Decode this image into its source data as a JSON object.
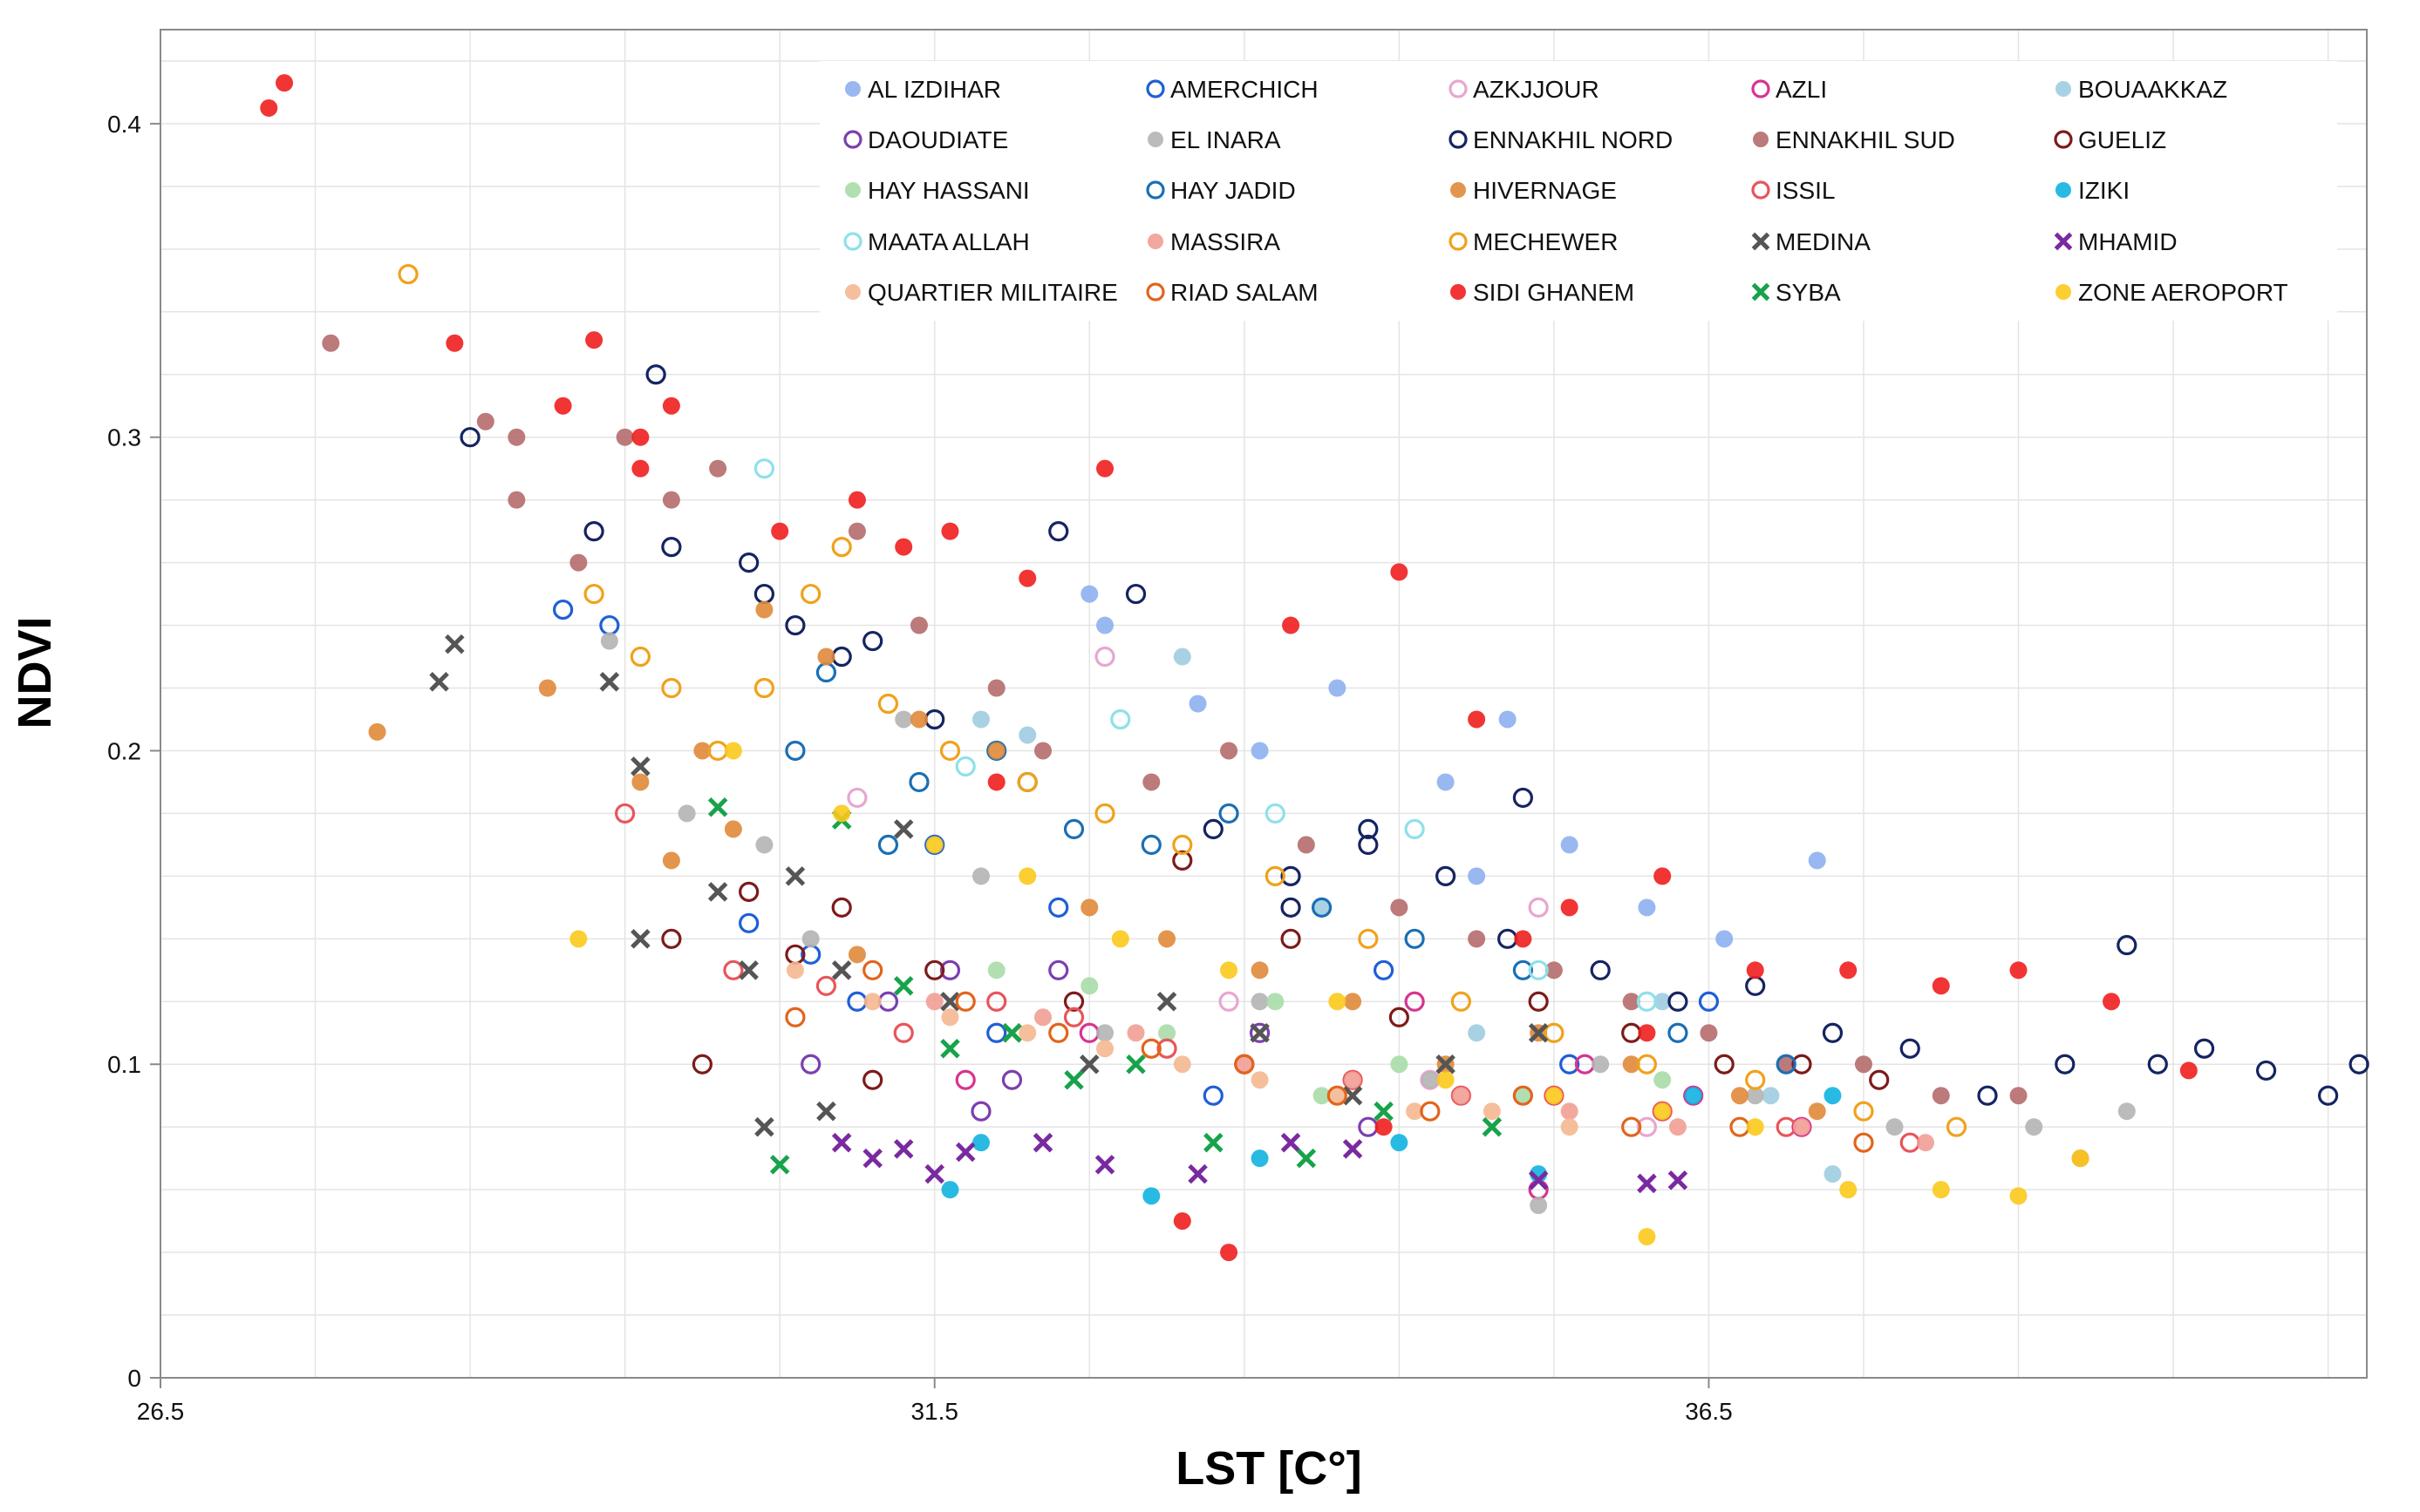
{
  "chart_data": {
    "type": "scatter",
    "title": "",
    "xlabel": "LST [C°]",
    "ylabel": "NDVI",
    "xlim": [
      26.5,
      40.75
    ],
    "ylim": [
      0,
      0.43
    ],
    "x_ticks": [
      "26.5",
      "31.5",
      "36.5"
    ],
    "y_ticks": [
      "0",
      "0.1",
      "0.2",
      "0.3",
      "0.4"
    ],
    "grid": true,
    "legend_position": "top-right",
    "series": [
      {
        "name": "AL IZDIHAR",
        "color": "#8eb0ef",
        "marker": "filled-circle",
        "x": [
          32.5,
          32.6,
          33.2,
          33.6,
          34.1,
          34.8,
          35.2,
          35.6,
          36.1,
          36.6,
          37.2,
          35.0
        ],
        "y": [
          0.25,
          0.24,
          0.215,
          0.2,
          0.22,
          0.19,
          0.21,
          0.17,
          0.15,
          0.14,
          0.165,
          0.16
        ]
      },
      {
        "name": "AMERCHICH",
        "color": "#1f5fd6",
        "marker": "open-circle",
        "x": [
          29.1,
          29.4,
          30.3,
          31.0,
          31.5,
          32.3,
          33.3,
          34.4,
          35.6,
          36.5,
          31.9,
          30.7
        ],
        "y": [
          0.245,
          0.24,
          0.145,
          0.12,
          0.17,
          0.15,
          0.09,
          0.13,
          0.1,
          0.12,
          0.11,
          0.135
        ]
      },
      {
        "name": "AZKJJOUR",
        "color": "#e8a6d0",
        "marker": "open-circle",
        "x": [
          32.6,
          31.0,
          33.4,
          34.7,
          35.4,
          36.1,
          31.8
        ],
        "y": [
          0.23,
          0.185,
          0.12,
          0.095,
          0.15,
          0.08,
          0.085
        ]
      },
      {
        "name": "AZLI",
        "color": "#d6358f",
        "marker": "open-circle",
        "x": [
          31.7,
          32.5,
          33.5,
          34.6,
          35.7,
          36.4,
          35.4,
          37.1
        ],
        "y": [
          0.095,
          0.11,
          0.1,
          0.12,
          0.1,
          0.09,
          0.06,
          0.08
        ]
      },
      {
        "name": "BOUAAKKAZ",
        "color": "#9fcde0",
        "marker": "filled-circle",
        "x": [
          31.8,
          32.1,
          33.1,
          34.0,
          35.0,
          36.2,
          37.3,
          36.9
        ],
        "y": [
          0.21,
          0.205,
          0.23,
          0.15,
          0.11,
          0.12,
          0.065,
          0.09
        ]
      },
      {
        "name": "DAOUDIATE",
        "color": "#7b3fb0",
        "marker": "open-circle",
        "x": [
          31.2,
          31.6,
          32.0,
          32.3,
          30.7,
          33.6,
          34.3,
          31.8
        ],
        "y": [
          0.12,
          0.13,
          0.095,
          0.13,
          0.1,
          0.11,
          0.08,
          0.085
        ]
      },
      {
        "name": "EL INARA",
        "color": "#b4b4b4",
        "marker": "filled-circle",
        "x": [
          29.4,
          29.9,
          30.4,
          31.3,
          32.6,
          33.6,
          34.7,
          35.8,
          36.8,
          37.7,
          38.6,
          39.2,
          35.4,
          30.7,
          31.8
        ],
        "y": [
          0.235,
          0.18,
          0.17,
          0.21,
          0.11,
          0.12,
          0.095,
          0.1,
          0.09,
          0.08,
          0.08,
          0.085,
          0.055,
          0.14,
          0.16
        ]
      },
      {
        "name": "ENNAKHIL NORD",
        "color": "#152461",
        "marker": "open-circle",
        "x": [
          28.5,
          29.3,
          29.7,
          30.3,
          30.6,
          30.9,
          31.5,
          32.1,
          32.3,
          32.8,
          33.3,
          33.8,
          34.3,
          34.8,
          35.3,
          35.8,
          36.3,
          36.8,
          37.3,
          37.8,
          38.3,
          38.8,
          39.2,
          39.4,
          39.7,
          40.1,
          40.5,
          40.7,
          29.8,
          30.4,
          31.1,
          33.8,
          34.3,
          35.2
        ],
        "y": [
          0.3,
          0.27,
          0.32,
          0.26,
          0.24,
          0.23,
          0.21,
          0.19,
          0.27,
          0.25,
          0.175,
          0.16,
          0.175,
          0.16,
          0.185,
          0.13,
          0.12,
          0.125,
          0.11,
          0.105,
          0.09,
          0.1,
          0.138,
          0.1,
          0.105,
          0.098,
          0.09,
          0.1,
          0.265,
          0.25,
          0.235,
          0.15,
          0.17,
          0.14
        ]
      },
      {
        "name": "ENNAKHIL SUD",
        "color": "#b56b6b",
        "marker": "filled-circle",
        "x": [
          27.6,
          28.6,
          28.8,
          28.8,
          29.2,
          29.5,
          29.8,
          30.1,
          31.0,
          31.4,
          31.9,
          32.2,
          32.9,
          33.4,
          33.9,
          34.5,
          35.0,
          35.5,
          36.0,
          36.5,
          37.0,
          37.5,
          38.0,
          38.5,
          38.9
        ],
        "y": [
          0.33,
          0.305,
          0.28,
          0.3,
          0.26,
          0.3,
          0.28,
          0.29,
          0.27,
          0.24,
          0.22,
          0.2,
          0.19,
          0.2,
          0.17,
          0.15,
          0.14,
          0.13,
          0.12,
          0.11,
          0.1,
          0.1,
          0.09,
          0.09,
          0.07
        ]
      },
      {
        "name": "GUELIZ",
        "color": "#7d1b1b",
        "marker": "open-circle",
        "x": [
          29.8,
          30.0,
          30.3,
          30.9,
          31.5,
          32.4,
          33.1,
          33.8,
          34.5,
          35.4,
          36.0,
          36.6,
          37.1,
          37.6,
          31.1,
          30.6
        ],
        "y": [
          0.14,
          0.1,
          0.155,
          0.15,
          0.13,
          0.12,
          0.165,
          0.14,
          0.115,
          0.12,
          0.11,
          0.1,
          0.1,
          0.095,
          0.095,
          0.135
        ]
      },
      {
        "name": "HAY HASSANI",
        "color": "#a8dba8",
        "marker": "filled-circle",
        "x": [
          32.5,
          33.0,
          33.7,
          34.5,
          35.3,
          36.2,
          31.9,
          34.0
        ],
        "y": [
          0.125,
          0.11,
          0.12,
          0.1,
          0.09,
          0.095,
          0.13,
          0.09
        ]
      },
      {
        "name": "HAY JADID",
        "color": "#1a6fb5",
        "marker": "open-circle",
        "x": [
          30.6,
          30.8,
          31.4,
          31.9,
          32.4,
          32.9,
          33.4,
          34.0,
          34.6,
          35.3,
          36.3,
          37.0,
          31.2
        ],
        "y": [
          0.2,
          0.225,
          0.19,
          0.2,
          0.175,
          0.17,
          0.18,
          0.15,
          0.14,
          0.13,
          0.11,
          0.1,
          0.17
        ]
      },
      {
        "name": "HIVERNAGE",
        "color": "#e08a3a",
        "marker": "filled-circle",
        "x": [
          27.9,
          29.0,
          29.6,
          29.8,
          30.0,
          30.4,
          30.8,
          31.4,
          31.9,
          32.5,
          33.0,
          33.6,
          34.2,
          34.8,
          35.4,
          36.0,
          36.7,
          37.2,
          30.2,
          31.0
        ],
        "y": [
          0.206,
          0.22,
          0.19,
          0.165,
          0.2,
          0.245,
          0.23,
          0.21,
          0.2,
          0.15,
          0.14,
          0.13,
          0.12,
          0.1,
          0.11,
          0.1,
          0.09,
          0.085,
          0.175,
          0.135
        ]
      },
      {
        "name": "ISSIL",
        "color": "#e8555b",
        "marker": "open-circle",
        "x": [
          29.5,
          30.2,
          30.8,
          31.3,
          31.9,
          32.4,
          33.0,
          33.5,
          34.2,
          34.9,
          35.5,
          36.2,
          37.0,
          37.8
        ],
        "y": [
          0.18,
          0.13,
          0.125,
          0.11,
          0.12,
          0.115,
          0.105,
          0.1,
          0.095,
          0.09,
          0.09,
          0.085,
          0.08,
          0.075
        ]
      },
      {
        "name": "IZIKI",
        "color": "#12b3e0",
        "marker": "filled-circle",
        "x": [
          31.6,
          32.9,
          33.6,
          34.5,
          35.4,
          36.4,
          37.3,
          31.8
        ],
        "y": [
          0.06,
          0.058,
          0.07,
          0.075,
          0.065,
          0.09,
          0.09,
          0.075
        ]
      },
      {
        "name": "MAATA ALLAH",
        "color": "#8fe0ea",
        "marker": "open-circle",
        "x": [
          30.4,
          32.7,
          33.7,
          34.6,
          35.4,
          31.7,
          36.1
        ],
        "y": [
          0.29,
          0.21,
          0.18,
          0.175,
          0.13,
          0.195,
          0.12
        ]
      },
      {
        "name": "MASSIRA",
        "color": "#f19f95",
        "marker": "filled-circle",
        "x": [
          31.5,
          32.2,
          32.8,
          33.5,
          34.2,
          34.9,
          35.6,
          36.3,
          37.1,
          37.9
        ],
        "y": [
          0.12,
          0.115,
          0.11,
          0.1,
          0.095,
          0.09,
          0.085,
          0.08,
          0.08,
          0.075
        ]
      },
      {
        "name": "MECHEWER",
        "color": "#f0a21c",
        "marker": "open-circle",
        "x": [
          28.1,
          29.3,
          29.6,
          29.8,
          30.1,
          30.4,
          30.9,
          31.2,
          31.6,
          32.1,
          32.6,
          33.1,
          33.7,
          34.3,
          34.9,
          35.5,
          36.1,
          36.8,
          37.5,
          38.1,
          30.7
        ],
        "y": [
          0.352,
          0.25,
          0.23,
          0.22,
          0.2,
          0.22,
          0.265,
          0.215,
          0.2,
          0.19,
          0.18,
          0.17,
          0.16,
          0.14,
          0.12,
          0.11,
          0.1,
          0.095,
          0.085,
          0.08,
          0.25
        ]
      },
      {
        "name": "MEDINA",
        "color": "#555555",
        "marker": "x",
        "x": [
          28.3,
          28.4,
          29.4,
          29.6,
          29.6,
          30.1,
          30.3,
          30.6,
          30.9,
          31.3,
          31.6,
          32.0,
          32.5,
          33.0,
          33.6,
          34.2,
          34.8,
          35.4,
          30.4,
          30.8
        ],
        "y": [
          0.222,
          0.234,
          0.222,
          0.195,
          0.14,
          0.155,
          0.13,
          0.16,
          0.13,
          0.175,
          0.12,
          0.11,
          0.1,
          0.12,
          0.11,
          0.09,
          0.1,
          0.11,
          0.08,
          0.085
        ]
      },
      {
        "name": "MHAMID",
        "color": "#7a2aa0",
        "marker": "x",
        "x": [
          30.9,
          31.1,
          31.3,
          31.5,
          31.7,
          32.2,
          32.6,
          33.2,
          33.8,
          34.2,
          35.4,
          36.1,
          36.3
        ],
        "y": [
          0.075,
          0.07,
          0.073,
          0.065,
          0.072,
          0.075,
          0.068,
          0.065,
          0.075,
          0.073,
          0.063,
          0.062,
          0.063
        ]
      },
      {
        "name": "QUARTIER MILITAIRE",
        "color": "#f5b891",
        "marker": "filled-circle",
        "x": [
          30.6,
          31.1,
          31.6,
          32.1,
          32.6,
          33.1,
          33.6,
          34.1,
          34.6,
          35.1,
          35.6
        ],
        "y": [
          0.13,
          0.12,
          0.115,
          0.11,
          0.105,
          0.1,
          0.095,
          0.09,
          0.085,
          0.085,
          0.08
        ]
      },
      {
        "name": "RIAD SALAM",
        "color": "#e2641c",
        "marker": "open-circle",
        "x": [
          30.6,
          31.1,
          31.7,
          32.3,
          32.9,
          33.5,
          34.1,
          34.7,
          35.3,
          36.0,
          36.7,
          37.5
        ],
        "y": [
          0.115,
          0.13,
          0.12,
          0.11,
          0.105,
          0.1,
          0.09,
          0.085,
          0.09,
          0.08,
          0.08,
          0.075
        ]
      },
      {
        "name": "SIDI GHANEM",
        "color": "#f01e1e",
        "marker": "filled-circle",
        "x": [
          27.2,
          27.3,
          28.4,
          29.1,
          29.3,
          29.6,
          29.6,
          29.8,
          30.5,
          31.0,
          31.3,
          31.6,
          32.1,
          32.6,
          33.4,
          33.8,
          34.4,
          35.0,
          35.6,
          36.2,
          36.8,
          37.4,
          38.0,
          38.5,
          39.1,
          39.6,
          33.1,
          34.5,
          35.3,
          36.1,
          31.9
        ],
        "y": [
          0.405,
          0.413,
          0.33,
          0.31,
          0.331,
          0.3,
          0.29,
          0.31,
          0.27,
          0.28,
          0.265,
          0.27,
          0.255,
          0.29,
          0.04,
          0.24,
          0.08,
          0.21,
          0.15,
          0.16,
          0.13,
          0.13,
          0.125,
          0.13,
          0.12,
          0.098,
          0.05,
          0.257,
          0.14,
          0.11,
          0.19
        ]
      },
      {
        "name": "SYBA",
        "color": "#17a34a",
        "marker": "x",
        "x": [
          30.1,
          30.5,
          30.9,
          31.3,
          31.6,
          32.0,
          32.4,
          32.8,
          33.3,
          33.9,
          34.4,
          35.1
        ],
        "y": [
          0.182,
          0.068,
          0.178,
          0.125,
          0.105,
          0.11,
          0.095,
          0.1,
          0.075,
          0.07,
          0.085,
          0.08
        ]
      },
      {
        "name": "ZONE AEROPORT",
        "color": "#fbc91c",
        "marker": "filled-circle",
        "x": [
          29.2,
          30.2,
          30.9,
          31.5,
          32.1,
          32.7,
          33.4,
          34.1,
          34.8,
          35.5,
          36.2,
          36.8,
          37.4,
          38.0,
          38.5,
          38.9,
          36.1
        ],
        "y": [
          0.14,
          0.2,
          0.18,
          0.17,
          0.16,
          0.14,
          0.13,
          0.12,
          0.095,
          0.09,
          0.085,
          0.08,
          0.06,
          0.06,
          0.058,
          0.07,
          0.045
        ]
      }
    ]
  }
}
